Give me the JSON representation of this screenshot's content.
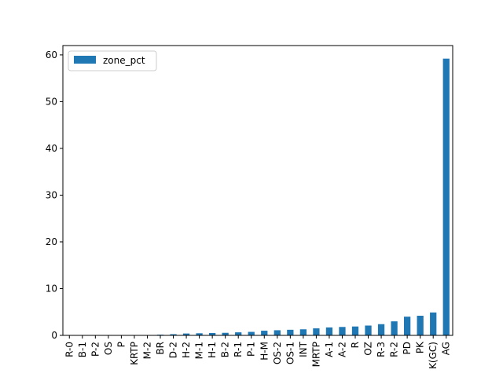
{
  "chart_data": {
    "type": "bar",
    "title": "",
    "xlabel": "",
    "ylabel": "",
    "ylim": [
      0,
      62
    ],
    "yticks": [
      0,
      10,
      20,
      30,
      40,
      50,
      60
    ],
    "grid": false,
    "legend_placement": "top-left",
    "categories": [
      "R-0",
      "B-1",
      "P-2",
      "OS",
      "P",
      "KRTP",
      "M-2",
      "BR",
      "D-2",
      "H-2",
      "M-1",
      "H-1",
      "B-2",
      "R-1",
      "P-1",
      "H-M",
      "OS-2",
      "OS-1",
      "INT",
      "MRTP",
      "A-1",
      "A-2",
      "R",
      "OZ",
      "R-3",
      "R-2",
      "PD",
      "PK",
      "K(GC)",
      "AG"
    ],
    "series": [
      {
        "name": "zone_pct",
        "color": "#1f77b4",
        "values": [
          0.0,
          0.01,
          0.02,
          0.03,
          0.04,
          0.06,
          0.08,
          0.15,
          0.25,
          0.4,
          0.45,
          0.5,
          0.55,
          0.65,
          0.75,
          1.0,
          1.1,
          1.2,
          1.3,
          1.5,
          1.7,
          1.8,
          1.9,
          2.1,
          2.4,
          3.0,
          4.0,
          4.2,
          4.9,
          59.2
        ]
      }
    ]
  }
}
